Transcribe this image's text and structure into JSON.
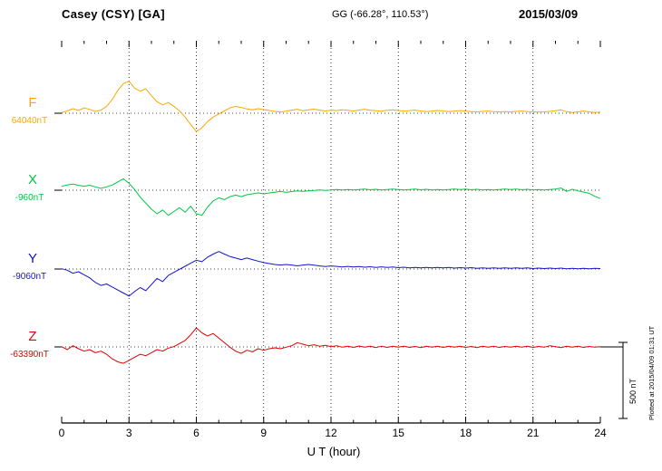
{
  "header": {
    "station": "Casey (CSY)  [GA]",
    "coords": "GG (-66.28°, 110.53°)",
    "date": "2015/03/09"
  },
  "axis": {
    "xlabel": "U T (hour)",
    "tick_labels": [
      "0",
      "3",
      "6",
      "9",
      "12",
      "15",
      "18",
      "21",
      "24"
    ]
  },
  "scale": {
    "label": "500 nT",
    "value_nT": 500
  },
  "note": "Plotted at 2015/04/09 01:31 UT",
  "chart_data": {
    "type": "line",
    "title": "Casey (CSY) [GA] magnetogram 2015/03/09",
    "xlabel": "U T (hour)",
    "x_unit": "hour",
    "x_start": 0,
    "x_step": 0.25,
    "x_end": 24,
    "x_ticks": [
      0,
      3,
      6,
      9,
      12,
      15,
      18,
      21,
      24
    ],
    "grid": "dotted",
    "scale_bar_nT": 500,
    "series": [
      {
        "name": "F",
        "color": "#FFA800",
        "baseline_nT": 64040,
        "baseline_label": "64040nT",
        "offsets_nT": [
          5,
          15,
          30,
          18,
          35,
          25,
          12,
          20,
          45,
          90,
          150,
          195,
          210,
          165,
          145,
          160,
          115,
          75,
          55,
          70,
          45,
          15,
          -25,
          -75,
          -120,
          -95,
          -55,
          -25,
          -5,
          15,
          35,
          45,
          38,
          28,
          22,
          30,
          24,
          18,
          12,
          8,
          14,
          20,
          26,
          16,
          22,
          27,
          20,
          14,
          20,
          17,
          23,
          19,
          14,
          21,
          26,
          19,
          16,
          13,
          19,
          22,
          18,
          14,
          17,
          20,
          15,
          11,
          14,
          18,
          14,
          11,
          14,
          17,
          13,
          11,
          9,
          12,
          14,
          11,
          9,
          11,
          9,
          12,
          14,
          11,
          9,
          7,
          9,
          12,
          16,
          22,
          10,
          4,
          9,
          14,
          9,
          4,
          8
        ]
      },
      {
        "name": "X",
        "color": "#00C844",
        "baseline_nT": -960,
        "baseline_label": "-960nT",
        "offsets_nT": [
          25,
          35,
          40,
          32,
          26,
          33,
          22,
          12,
          22,
          34,
          55,
          75,
          45,
          5,
          -45,
          -85,
          -125,
          -155,
          -130,
          -165,
          -140,
          -115,
          -145,
          -105,
          -155,
          -165,
          -110,
          -70,
          -50,
          -62,
          -42,
          -32,
          -42,
          -30,
          -24,
          -18,
          -24,
          -18,
          -13,
          -8,
          -14,
          -9,
          -4,
          -8,
          -4,
          -2,
          2,
          -2,
          2,
          5,
          1,
          4,
          1,
          4,
          7,
          3,
          6,
          2,
          5,
          8,
          4,
          1,
          4,
          7,
          3,
          6,
          2,
          5,
          2,
          5,
          8,
          4,
          7,
          3,
          6,
          2,
          5,
          2,
          5,
          8,
          4,
          7,
          3,
          6,
          2,
          5,
          2,
          5,
          8,
          14,
          -8,
          6,
          -4,
          -12,
          -20,
          -40,
          -55
        ]
      },
      {
        "name": "Y",
        "color": "#1414CC",
        "baseline_nT": -9060,
        "baseline_label": "-9060nT",
        "offsets_nT": [
          2,
          -8,
          -28,
          -18,
          -38,
          -58,
          -88,
          -108,
          -98,
          -118,
          -138,
          -158,
          -178,
          -148,
          -122,
          -142,
          -102,
          -62,
          -82,
          -42,
          -22,
          -2,
          18,
          38,
          58,
          48,
          78,
          98,
          115,
          98,
          82,
          72,
          62,
          72,
          62,
          52,
          42,
          36,
          30,
          26,
          30,
          26,
          21,
          26,
          30,
          25,
          20,
          16,
          20,
          17,
          13,
          17,
          13,
          16,
          12,
          15,
          11,
          14,
          10,
          13,
          9,
          12,
          8,
          11,
          8,
          11,
          7,
          10,
          7,
          10,
          6,
          9,
          6,
          9,
          5,
          8,
          5,
          8,
          4,
          7,
          4,
          7,
          4,
          7,
          3,
          6,
          3,
          6,
          3,
          6,
          2,
          5,
          2,
          5,
          2,
          4,
          3
        ]
      },
      {
        "name": "Z",
        "color": "#E00000",
        "baseline_nT": -63390,
        "baseline_label": "-63390nT",
        "offsets_nT": [
          2,
          -18,
          8,
          -12,
          -28,
          -18,
          -38,
          -28,
          -48,
          -78,
          -98,
          -108,
          -88,
          -68,
          -48,
          -58,
          -38,
          -18,
          -28,
          -8,
          2,
          22,
          42,
          80,
          125,
          92,
          72,
          88,
          58,
          28,
          -2,
          -28,
          -42,
          -22,
          -32,
          -12,
          -22,
          -12,
          -6,
          -12,
          -2,
          8,
          28,
          18,
          8,
          14,
          4,
          10,
          2,
          8,
          -2,
          5,
          -3,
          6,
          -2,
          4,
          -4,
          5,
          -3,
          4,
          -2,
          5,
          -3,
          3,
          -4,
          4,
          -2,
          5,
          -3,
          4,
          -2,
          4,
          -3,
          3,
          -4,
          4,
          -2,
          4,
          -3,
          3,
          -2,
          5,
          -2,
          4,
          -3,
          3,
          -2,
          8,
          2,
          -4,
          4,
          -2,
          5,
          -3,
          3,
          -2,
          2
        ]
      }
    ]
  }
}
